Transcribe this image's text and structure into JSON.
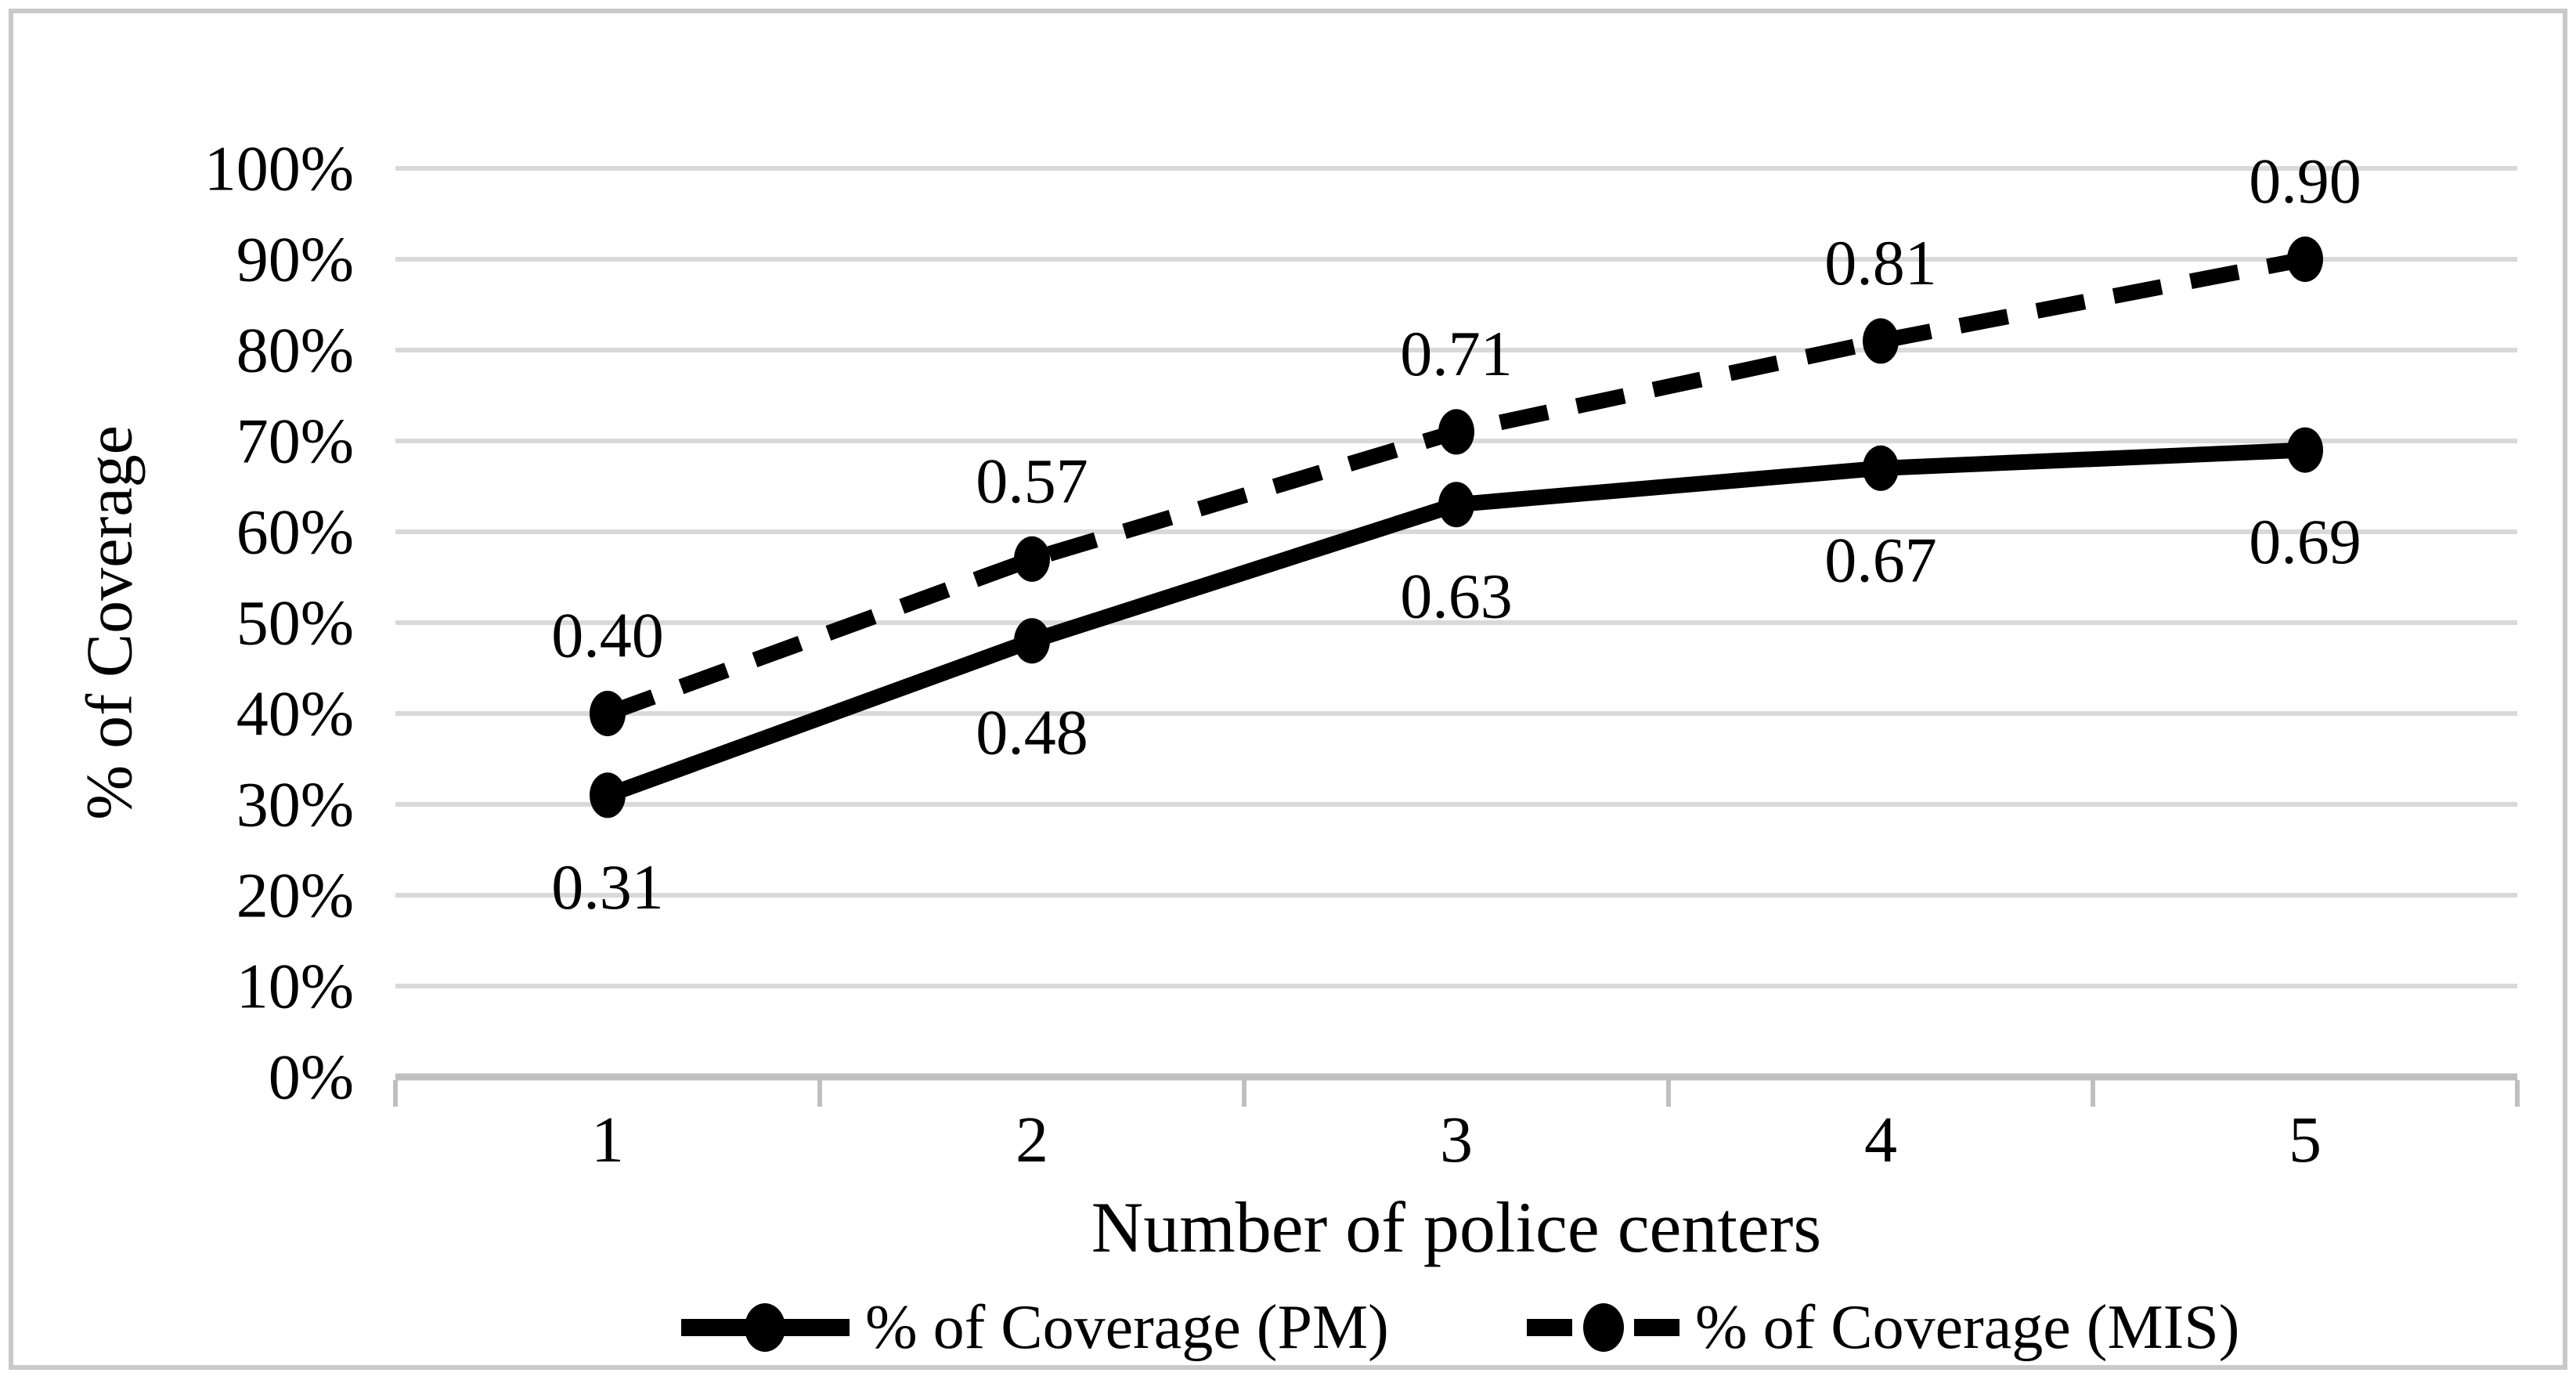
{
  "chart_data": {
    "type": "line",
    "title": "",
    "xlabel": "Number of police centers",
    "ylabel": "% of Coverage",
    "x_tick_labels": [
      "1",
      "2",
      "3",
      "4",
      "5"
    ],
    "ylim": [
      0,
      1
    ],
    "y_ticks": [
      {
        "value": 0.0,
        "label": "0%"
      },
      {
        "value": 0.1,
        "label": "10%"
      },
      {
        "value": 0.2,
        "label": "20%"
      },
      {
        "value": 0.3,
        "label": "30%"
      },
      {
        "value": 0.4,
        "label": "40%"
      },
      {
        "value": 0.5,
        "label": "50%"
      },
      {
        "value": 0.6,
        "label": "60%"
      },
      {
        "value": 0.7,
        "label": "70%"
      },
      {
        "value": 0.8,
        "label": "80%"
      },
      {
        "value": 0.9,
        "label": "90%"
      },
      {
        "value": 1.0,
        "label": "100%"
      }
    ],
    "grid": "horizontal",
    "legend_position": "bottom",
    "series": [
      {
        "name": "% of Coverage (PM)",
        "line_style": "solid",
        "marker": "circle",
        "color": "#000000",
        "values": [
          0.31,
          0.48,
          0.63,
          0.67,
          0.69
        ],
        "data_labels": [
          "0.31",
          "0.48",
          "0.63",
          "0.67",
          "0.69"
        ],
        "label_position": "below"
      },
      {
        "name": "% of Coverage (MIS)",
        "line_style": "dashed",
        "marker": "circle",
        "color": "#000000",
        "values": [
          0.4,
          0.57,
          0.71,
          0.81,
          0.9
        ],
        "data_labels": [
          "0.40",
          "0.57",
          "0.71",
          "0.81",
          "0.90"
        ],
        "label_position": "above"
      }
    ],
    "colors": {
      "gridline": "#d9d9d9",
      "axis_line": "#bfbfbf",
      "frame": "#c9c9c9",
      "text": "#000000",
      "series": "#000000"
    }
  }
}
